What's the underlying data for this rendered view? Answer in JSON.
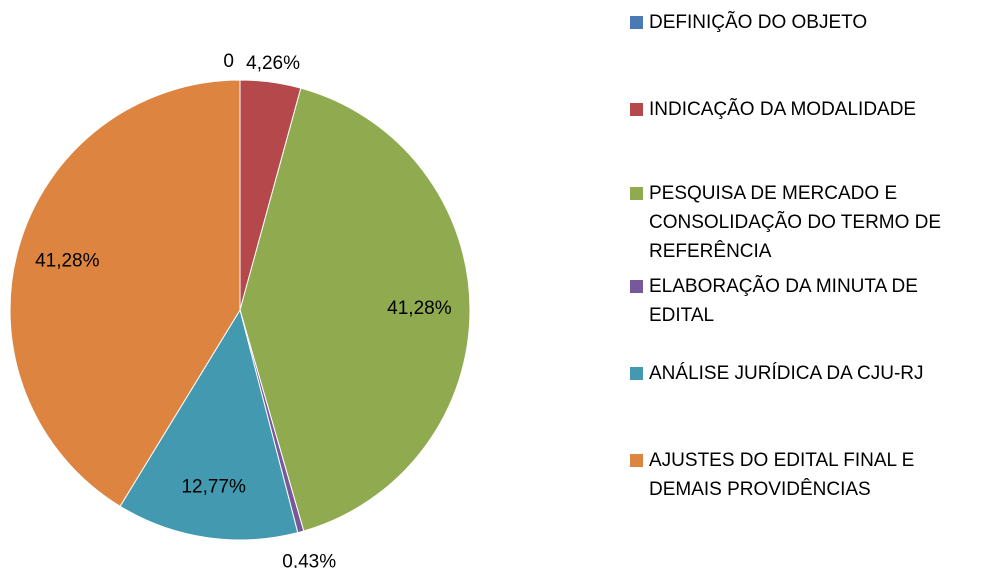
{
  "chart_data": {
    "type": "pie",
    "categories": [
      "DEFINIÇÃO DO OBJETO",
      "INDICAÇÃO DA MODALIDADE",
      "PESQUISA DE MERCADO E CONSOLIDAÇÃO DO TERMO DE REFERÊNCIA",
      "ELABORAÇÃO DA MINUTA DE EDITAL",
      "ANÁLISE JURÍDICA DA CJU-RJ",
      "AJUSTES DO EDITAL FINAL E DEMAIS PROVIDÊNCIAS"
    ],
    "values": [
      0,
      4.26,
      41.28,
      0.43,
      12.77,
      41.28
    ],
    "value_labels": [
      "0",
      "4,26%",
      "41,28%",
      "0,43%",
      "12,77%",
      "41,28%"
    ],
    "colors": [
      "#4a7ab5",
      "#b5484a",
      "#8faa4f",
      "#77589a",
      "#4299b0",
      "#dd8540"
    ],
    "legend": "right"
  }
}
